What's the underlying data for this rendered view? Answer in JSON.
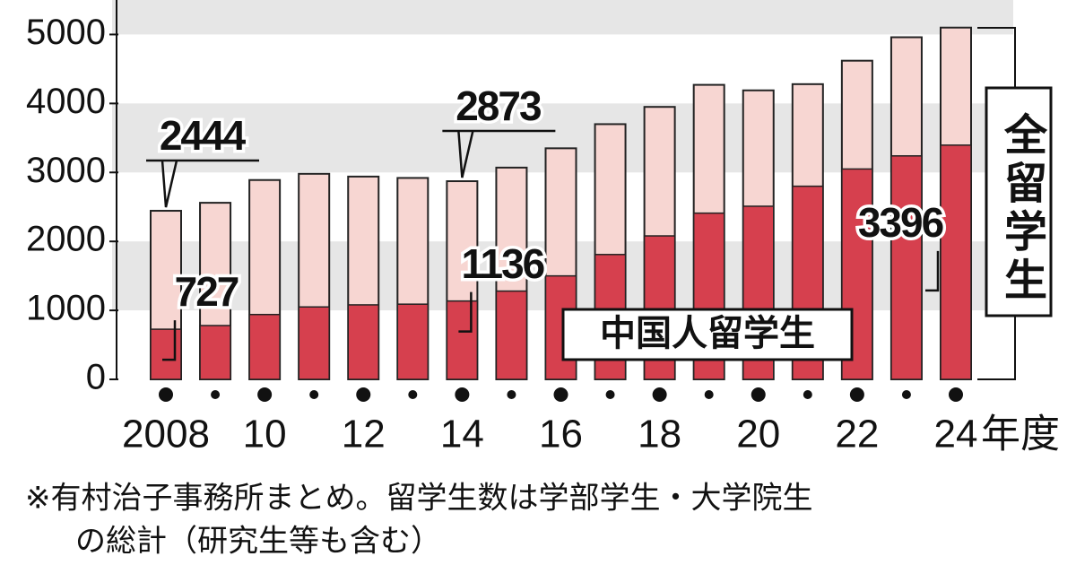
{
  "chart_data": {
    "type": "overlay_bar",
    "categories": [
      "2008",
      null,
      "10",
      null,
      "12",
      null,
      "14",
      null,
      "16",
      null,
      "18",
      null,
      "20",
      null,
      "22",
      null,
      "24"
    ],
    "x_label": "年度",
    "series": [
      {
        "name": "全留学生",
        "color": "#f7d6d2",
        "values": [
          2444,
          2560,
          2890,
          2980,
          2940,
          2920,
          2873,
          3070,
          3350,
          3700,
          3950,
          4270,
          4190,
          4280,
          4620,
          4960,
          5100
        ],
        "value_labels": [
          "2444",
          null,
          null,
          null,
          null,
          null,
          "2873",
          null,
          null,
          null,
          null,
          null,
          null,
          null,
          null,
          null,
          null
        ]
      },
      {
        "name": "中国人留学生",
        "color": "#d6404e",
        "values": [
          727,
          780,
          940,
          1050,
          1080,
          1090,
          1136,
          1280,
          1500,
          1810,
          2080,
          2410,
          2510,
          2800,
          3050,
          3240,
          3396
        ],
        "value_labels": [
          "727",
          null,
          null,
          null,
          null,
          null,
          "1136",
          null,
          null,
          null,
          null,
          null,
          null,
          null,
          null,
          null,
          "3396"
        ]
      }
    ],
    "ylim": [
      0,
      5500
    ],
    "yticks": [
      0,
      1000,
      2000,
      3000,
      4000,
      5000
    ],
    "grid": "bands",
    "note": [
      "※有村治子事務所まとめ。留学生数は学部学生・大学院生",
      "の総計（研究生等も含む）"
    ]
  }
}
